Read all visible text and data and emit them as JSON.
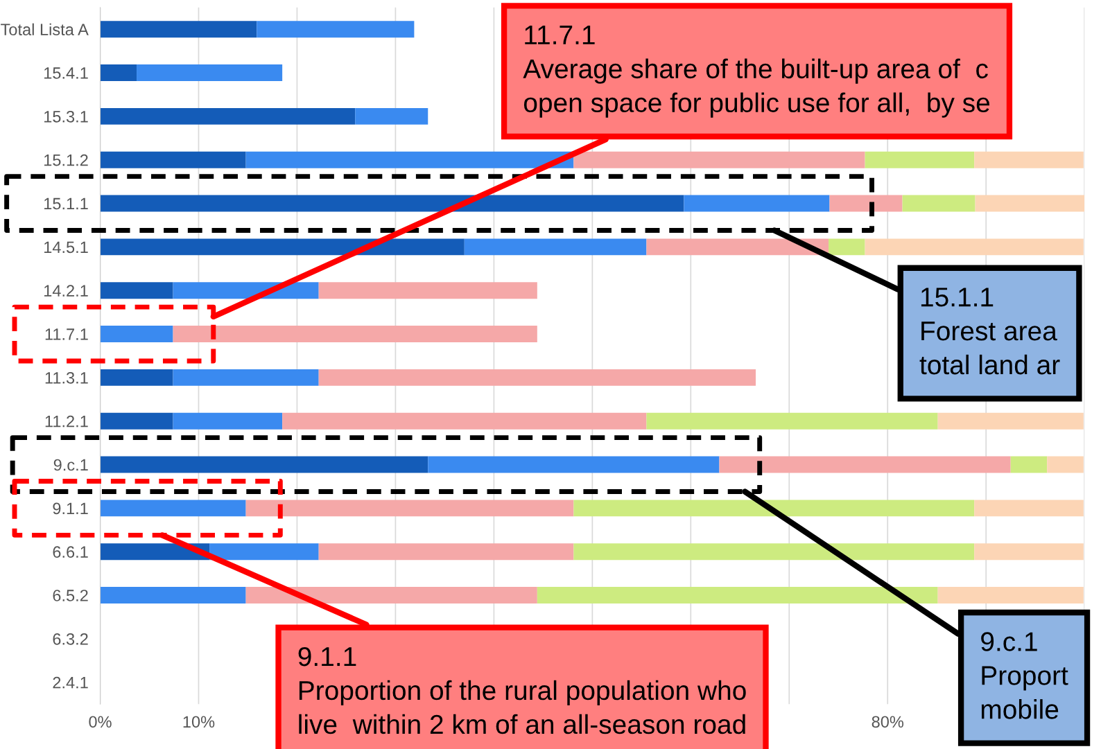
{
  "chart_data": {
    "type": "bar",
    "orientation": "horizontal",
    "stacked": true,
    "categories": [
      "Total Lista A",
      "15.4.1",
      "15.3.1",
      "15.1.2",
      "15.1.1",
      "14.5.1",
      "14.2.1",
      "11.7.1",
      "11.3.1",
      "11.2.1",
      "9.c.1",
      "9.1.1",
      "6.6.1",
      "6.5.2",
      "6.3.2",
      "2.4.1"
    ],
    "series": [
      {
        "color": "#145cb8",
        "values": [
          15.9,
          3.7,
          25.9,
          14.8,
          59.3,
          37.0,
          7.4,
          0,
          7.4,
          7.4,
          33.3,
          0,
          11.1,
          0,
          null,
          null
        ]
      },
      {
        "color": "#3a8af0",
        "values": [
          16.0,
          14.8,
          7.4,
          33.3,
          14.8,
          18.5,
          14.8,
          7.4,
          14.8,
          11.1,
          29.6,
          14.8,
          11.1,
          14.8,
          null,
          null
        ]
      },
      {
        "color": "#f5a8a8",
        "values": [
          null,
          null,
          null,
          29.6,
          7.4,
          18.5,
          22.2,
          37.0,
          44.4,
          37.0,
          29.6,
          33.3,
          25.9,
          29.6,
          null,
          null
        ]
      },
      {
        "color": "#cdeb80",
        "values": [
          null,
          null,
          null,
          11.1,
          7.4,
          3.7,
          null,
          null,
          null,
          29.6,
          3.7,
          40.7,
          40.7,
          40.7,
          null,
          null
        ]
      },
      {
        "color": "#fcd5b5",
        "values": [
          null,
          null,
          null,
          11.1,
          11.1,
          22.2,
          null,
          null,
          null,
          14.8,
          3.7,
          11.1,
          11.1,
          14.8,
          null,
          null
        ]
      }
    ],
    "xlim": [
      0,
      100
    ],
    "xticks": [
      {
        "value": 0,
        "label": "0%"
      },
      {
        "value": 10,
        "label": "10%"
      },
      {
        "value": 20,
        "label": null
      },
      {
        "value": 30,
        "label": null
      },
      {
        "value": 40,
        "label": null
      },
      {
        "value": 50,
        "label": null
      },
      {
        "value": 60,
        "label": null
      },
      {
        "value": 70,
        "label": null
      },
      {
        "value": 80,
        "label": "80%"
      },
      {
        "value": 90,
        "label": null
      },
      {
        "value": 100,
        "label": null
      }
    ],
    "grid": "x",
    "annotations": [
      "11.7.1\nAverage share of the built-up area of  c\nopen space for public use for all,  by se",
      "15.1.1\nForest area\ntotal land ar",
      "9.c.1\nProport\nmobile",
      "9.1.1\nProportion of the rural population who\nlive  within 2 km of an all-season road"
    ]
  }
}
